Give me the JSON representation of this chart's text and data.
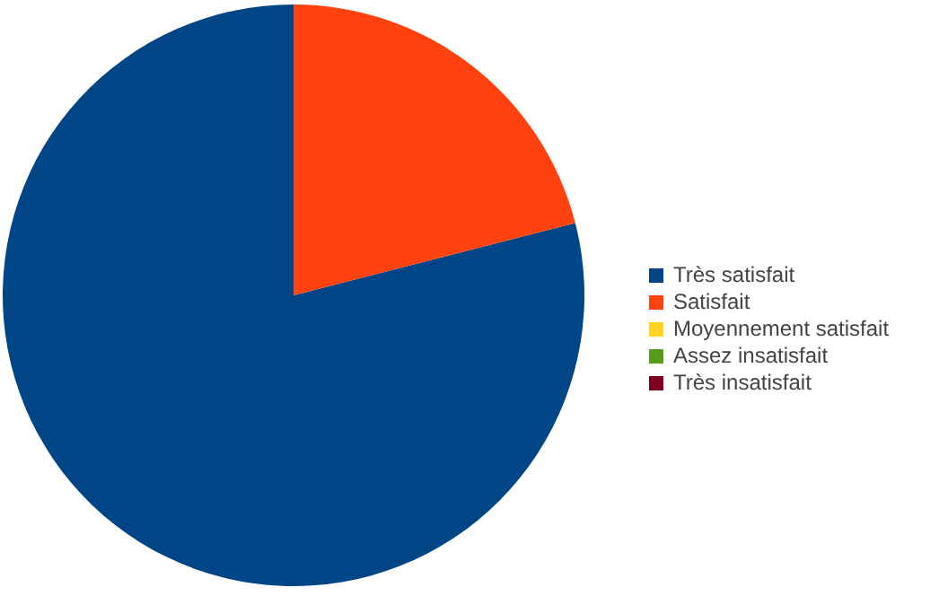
{
  "chart_data": {
    "type": "pie",
    "categories": [
      "Très satisfait",
      "Satisfait",
      "Moyennement satisfait",
      "Assez insatisfait",
      "Très insatisfait"
    ],
    "values": [
      79,
      21,
      0,
      0,
      0
    ],
    "colors": [
      "#004586",
      "#ff420e",
      "#ffd320",
      "#579d1c",
      "#7e0021"
    ],
    "legend": "right"
  }
}
